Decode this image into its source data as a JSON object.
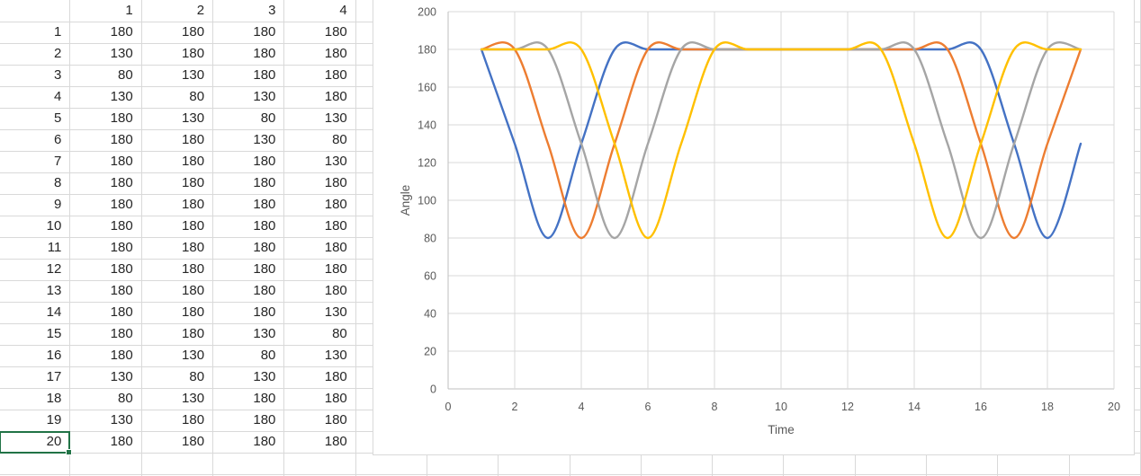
{
  "spreadsheet": {
    "header_row": [
      "",
      "1",
      "2",
      "3",
      "4"
    ],
    "rows": [
      {
        "label": "1",
        "values": [
          180,
          180,
          180,
          180
        ]
      },
      {
        "label": "2",
        "values": [
          130,
          180,
          180,
          180
        ]
      },
      {
        "label": "3",
        "values": [
          80,
          130,
          180,
          180
        ]
      },
      {
        "label": "4",
        "values": [
          130,
          80,
          130,
          180
        ]
      },
      {
        "label": "5",
        "values": [
          180,
          130,
          80,
          130
        ]
      },
      {
        "label": "6",
        "values": [
          180,
          180,
          130,
          80
        ]
      },
      {
        "label": "7",
        "values": [
          180,
          180,
          180,
          130
        ]
      },
      {
        "label": "8",
        "values": [
          180,
          180,
          180,
          180
        ]
      },
      {
        "label": "9",
        "values": [
          180,
          180,
          180,
          180
        ]
      },
      {
        "label": "10",
        "values": [
          180,
          180,
          180,
          180
        ]
      },
      {
        "label": "11",
        "values": [
          180,
          180,
          180,
          180
        ]
      },
      {
        "label": "12",
        "values": [
          180,
          180,
          180,
          180
        ]
      },
      {
        "label": "13",
        "values": [
          180,
          180,
          180,
          180
        ]
      },
      {
        "label": "14",
        "values": [
          180,
          180,
          180,
          130
        ]
      },
      {
        "label": "15",
        "values": [
          180,
          180,
          130,
          80
        ]
      },
      {
        "label": "16",
        "values": [
          180,
          130,
          80,
          130
        ]
      },
      {
        "label": "17",
        "values": [
          130,
          80,
          130,
          180
        ]
      },
      {
        "label": "18",
        "values": [
          80,
          130,
          180,
          180
        ]
      },
      {
        "label": "19",
        "values": [
          130,
          180,
          180,
          180
        ]
      },
      {
        "label": "20",
        "values": [
          180,
          180,
          180,
          180
        ]
      }
    ],
    "selected_cell_label": "20",
    "selection_color": "#217346",
    "grid_color": "#d9d9d9",
    "text_color": "#262626"
  },
  "chart_data": {
    "type": "line",
    "smooth": true,
    "title": "",
    "xlabel": "Time",
    "ylabel": "Angle",
    "xlim": [
      0,
      20
    ],
    "ylim": [
      0,
      200
    ],
    "x_ticks": [
      0,
      2,
      4,
      6,
      8,
      10,
      12,
      14,
      16,
      18,
      20
    ],
    "y_ticks": [
      0,
      20,
      40,
      60,
      80,
      100,
      120,
      140,
      160,
      180,
      200
    ],
    "grid": true,
    "legend": false,
    "x": [
      1,
      2,
      3,
      4,
      5,
      6,
      7,
      8,
      9,
      10,
      11,
      12,
      13,
      14,
      15,
      16,
      17,
      18,
      19
    ],
    "series": [
      {
        "name": "1",
        "color": "#4472C4",
        "values": [
          180,
          130,
          80,
          130,
          180,
          180,
          180,
          180,
          180,
          180,
          180,
          180,
          180,
          180,
          180,
          180,
          130,
          80,
          130
        ]
      },
      {
        "name": "2",
        "color": "#ED7D31",
        "values": [
          180,
          180,
          130,
          80,
          130,
          180,
          180,
          180,
          180,
          180,
          180,
          180,
          180,
          180,
          180,
          130,
          80,
          130,
          180
        ]
      },
      {
        "name": "3",
        "color": "#A5A5A5",
        "values": [
          180,
          180,
          180,
          130,
          80,
          130,
          180,
          180,
          180,
          180,
          180,
          180,
          180,
          180,
          130,
          80,
          130,
          180,
          180
        ]
      },
      {
        "name": "4",
        "color": "#FFC000",
        "values": [
          180,
          180,
          180,
          180,
          130,
          80,
          130,
          180,
          180,
          180,
          180,
          180,
          180,
          130,
          80,
          130,
          180,
          180,
          180
        ]
      }
    ],
    "grid_color": "#d9d9d9",
    "axis_color": "#bfbfbf",
    "label_color": "#595959"
  }
}
